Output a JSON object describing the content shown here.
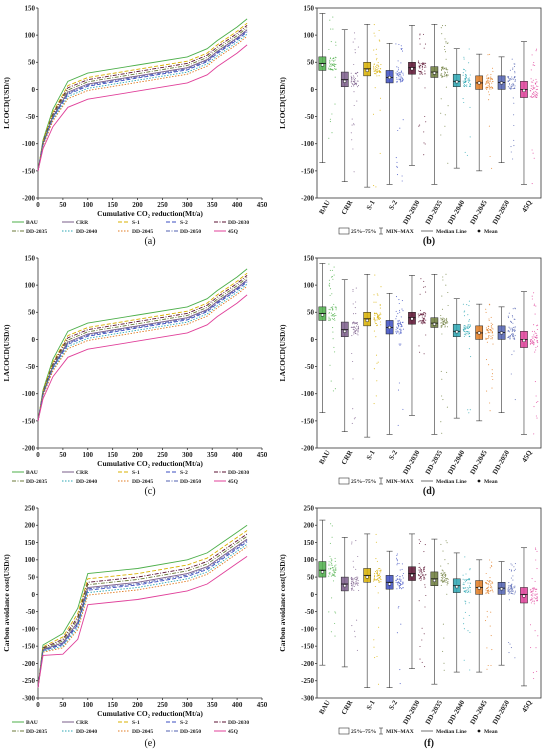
{
  "series_colors": {
    "BAU": "#4daf4a",
    "CRR": "#7a5c8a",
    "S-1": "#d8b000",
    "S-2": "#3b4cc0",
    "DD-2030": "#5a1030",
    "DD-2035": "#6b7a3a",
    "DD-2040": "#2aa6b3",
    "DD-2045": "#e07a20",
    "DD-2050": "#5060b0",
    "45Q": "#e0409a"
  },
  "legend": {
    "line_entries": [
      "BAU",
      "CRR",
      "S-1",
      "S-2",
      "DD-2030",
      "DD-2035",
      "DD-2040",
      "DD-2045",
      "DD-2050",
      "45Q"
    ],
    "box_iqr": "25%~75%",
    "box_range": "MIN~MAX",
    "box_median": "Median Line",
    "box_mean": "Mean"
  },
  "panel_labels": {
    "a": "(a)",
    "b": "(b)",
    "c": "(c)",
    "d": "(d)",
    "e": "(e)",
    "f": "(f)"
  },
  "chart_data": [
    {
      "id": "a",
      "type": "line",
      "xlabel": "Cumulative CO₂ reduction(Mt/a)",
      "ylabel": "LCOCD(USD/t)",
      "xlim": [
        0,
        450
      ],
      "ylim": [
        -200,
        150
      ],
      "xticks": [
        0,
        50,
        100,
        150,
        200,
        250,
        300,
        350,
        400,
        450
      ],
      "yticks": [
        -200,
        -150,
        -100,
        -50,
        0,
        50,
        100,
        150
      ],
      "series_order": [
        "BAU",
        "CRR",
        "S-1",
        "S-2",
        "DD-2030",
        "DD-2035",
        "DD-2040",
        "DD-2045",
        "DD-2050",
        "45Q"
      ],
      "base_x": [
        0,
        10,
        30,
        60,
        100,
        200,
        300,
        340,
        360,
        400,
        420
      ],
      "base_y": [
        -150,
        -100,
        -50,
        -5,
        10,
        25,
        40,
        55,
        70,
        95,
        110
      ],
      "offsets": {
        "BAU": 20,
        "CRR": 0,
        "S-1": 12,
        "S-2": -4,
        "DD-2030": 8,
        "DD-2035": 4,
        "DD-2040": -8,
        "DD-2045": -12,
        "DD-2050": -2,
        "45Q": -28
      }
    },
    {
      "id": "b",
      "type": "box",
      "ylabel": "LCOCD(USD/t)",
      "ylim": [
        -200,
        150
      ],
      "yticks": [
        -200,
        -150,
        -100,
        -50,
        0,
        50,
        100,
        150
      ],
      "categories": [
        "BAU",
        "CRR",
        "S-1",
        "S-2",
        "DD-2030",
        "DD-2035",
        "DD-2040",
        "DD-2045",
        "DD-2050",
        "45Q"
      ],
      "q1": [
        35,
        5,
        25,
        12,
        28,
        22,
        5,
        0,
        0,
        -15
      ],
      "median": [
        48,
        18,
        38,
        22,
        40,
        32,
        15,
        12,
        13,
        0
      ],
      "q3": [
        60,
        32,
        50,
        35,
        50,
        42,
        28,
        25,
        25,
        15
      ],
      "min": [
        -135,
        -170,
        -180,
        -175,
        -140,
        -175,
        -145,
        -150,
        -135,
        -175
      ],
      "max": [
        140,
        110,
        120,
        85,
        118,
        120,
        75,
        65,
        60,
        88
      ],
      "mean": [
        45,
        15,
        35,
        22,
        38,
        30,
        14,
        12,
        12,
        -2
      ]
    },
    {
      "id": "c",
      "type": "line",
      "xlabel": "Cumulative CO₂ reduction(Mt/a)",
      "ylabel": "LACOCD(USD/t)",
      "xlim": [
        0,
        450
      ],
      "ylim": [
        -200,
        150
      ],
      "xticks": [
        0,
        50,
        100,
        150,
        200,
        250,
        300,
        350,
        400,
        450
      ],
      "yticks": [
        -200,
        -150,
        -100,
        -50,
        0,
        50,
        100,
        150
      ],
      "series_order": [
        "BAU",
        "CRR",
        "S-1",
        "S-2",
        "DD-2030",
        "DD-2035",
        "DD-2040",
        "DD-2045",
        "DD-2050",
        "45Q"
      ],
      "base_x": [
        0,
        10,
        30,
        60,
        100,
        200,
        300,
        340,
        360,
        400,
        420
      ],
      "base_y": [
        -150,
        -100,
        -50,
        -5,
        10,
        25,
        40,
        55,
        70,
        95,
        110
      ],
      "offsets": {
        "BAU": 20,
        "CRR": 0,
        "S-1": 12,
        "S-2": -4,
        "DD-2030": 8,
        "DD-2035": 4,
        "DD-2040": -8,
        "DD-2045": -12,
        "DD-2050": -2,
        "45Q": -28
      }
    },
    {
      "id": "d",
      "type": "box",
      "ylabel": "LACOCD(USD/t)",
      "ylim": [
        -200,
        150
      ],
      "yticks": [
        -200,
        -150,
        -100,
        -50,
        0,
        50,
        100,
        150
      ],
      "categories": [
        "BAU",
        "CRR",
        "S-1",
        "S-2",
        "DD-2030",
        "DD-2035",
        "DD-2040",
        "DD-2045",
        "DD-2050",
        "45Q"
      ],
      "q1": [
        35,
        5,
        25,
        10,
        28,
        22,
        5,
        0,
        0,
        -15
      ],
      "median": [
        48,
        18,
        38,
        22,
        40,
        30,
        15,
        12,
        13,
        0
      ],
      "q3": [
        60,
        32,
        50,
        35,
        50,
        40,
        28,
        25,
        25,
        15
      ],
      "min": [
        -135,
        -170,
        -180,
        -175,
        -140,
        -175,
        -145,
        -150,
        -135,
        -175
      ],
      "max": [
        140,
        110,
        120,
        85,
        118,
        120,
        75,
        65,
        60,
        88
      ],
      "mean": [
        45,
        15,
        35,
        22,
        38,
        28,
        14,
        12,
        12,
        -2
      ]
    },
    {
      "id": "e",
      "type": "line",
      "xlabel": "Cumulative CO₂ reduction(Mt/a)",
      "ylabel": "Carbon avoidance cost(USD/t)",
      "xlim": [
        0,
        450
      ],
      "ylim": [
        -300,
        250
      ],
      "xticks": [
        0,
        50,
        100,
        150,
        200,
        250,
        300,
        350,
        400,
        450
      ],
      "yticks": [
        -300,
        -250,
        -200,
        -150,
        -100,
        -50,
        0,
        50,
        100,
        150,
        200,
        250
      ],
      "series_order": [
        "BAU",
        "CRR",
        "S-1",
        "S-2",
        "DD-2030",
        "DD-2035",
        "DD-2040",
        "DD-2045",
        "DD-2050",
        "45Q"
      ],
      "base_x": [
        0,
        10,
        50,
        80,
        100,
        200,
        300,
        340,
        360,
        400,
        420
      ],
      "base_y": [
        -270,
        -160,
        -140,
        -80,
        20,
        35,
        60,
        80,
        100,
        140,
        160
      ],
      "offsets": {
        "BAU": 40,
        "CRR": 0,
        "S-1": 25,
        "S-2": -8,
        "DD-2030": 15,
        "DD-2035": 8,
        "DD-2040": -15,
        "DD-2045": -22,
        "DD-2050": -4,
        "45Q": -50
      }
    },
    {
      "id": "f",
      "type": "box",
      "ylabel": "Carbon avoidance cost(USD/t)",
      "ylim": [
        -300,
        250
      ],
      "yticks": [
        -300,
        -250,
        -200,
        -150,
        -100,
        -50,
        0,
        50,
        100,
        150,
        200,
        250
      ],
      "categories": [
        "BAU",
        "CRR",
        "S-1",
        "S-2",
        "DD-2030",
        "DD-2035",
        "DD-2040",
        "DD-2045",
        "DD-2050",
        "45Q"
      ],
      "q1": [
        50,
        10,
        35,
        15,
        40,
        25,
        5,
        0,
        0,
        -25
      ],
      "median": [
        70,
        30,
        55,
        35,
        60,
        45,
        25,
        20,
        18,
        0
      ],
      "q3": [
        95,
        50,
        75,
        55,
        80,
        65,
        45,
        40,
        35,
        20
      ],
      "min": [
        -205,
        -210,
        -270,
        -270,
        -215,
        -260,
        -225,
        -225,
        -205,
        -265
      ],
      "max": [
        215,
        165,
        175,
        125,
        175,
        160,
        120,
        100,
        95,
        135
      ],
      "mean": [
        65,
        25,
        50,
        30,
        55,
        40,
        22,
        18,
        16,
        -5
      ]
    }
  ]
}
